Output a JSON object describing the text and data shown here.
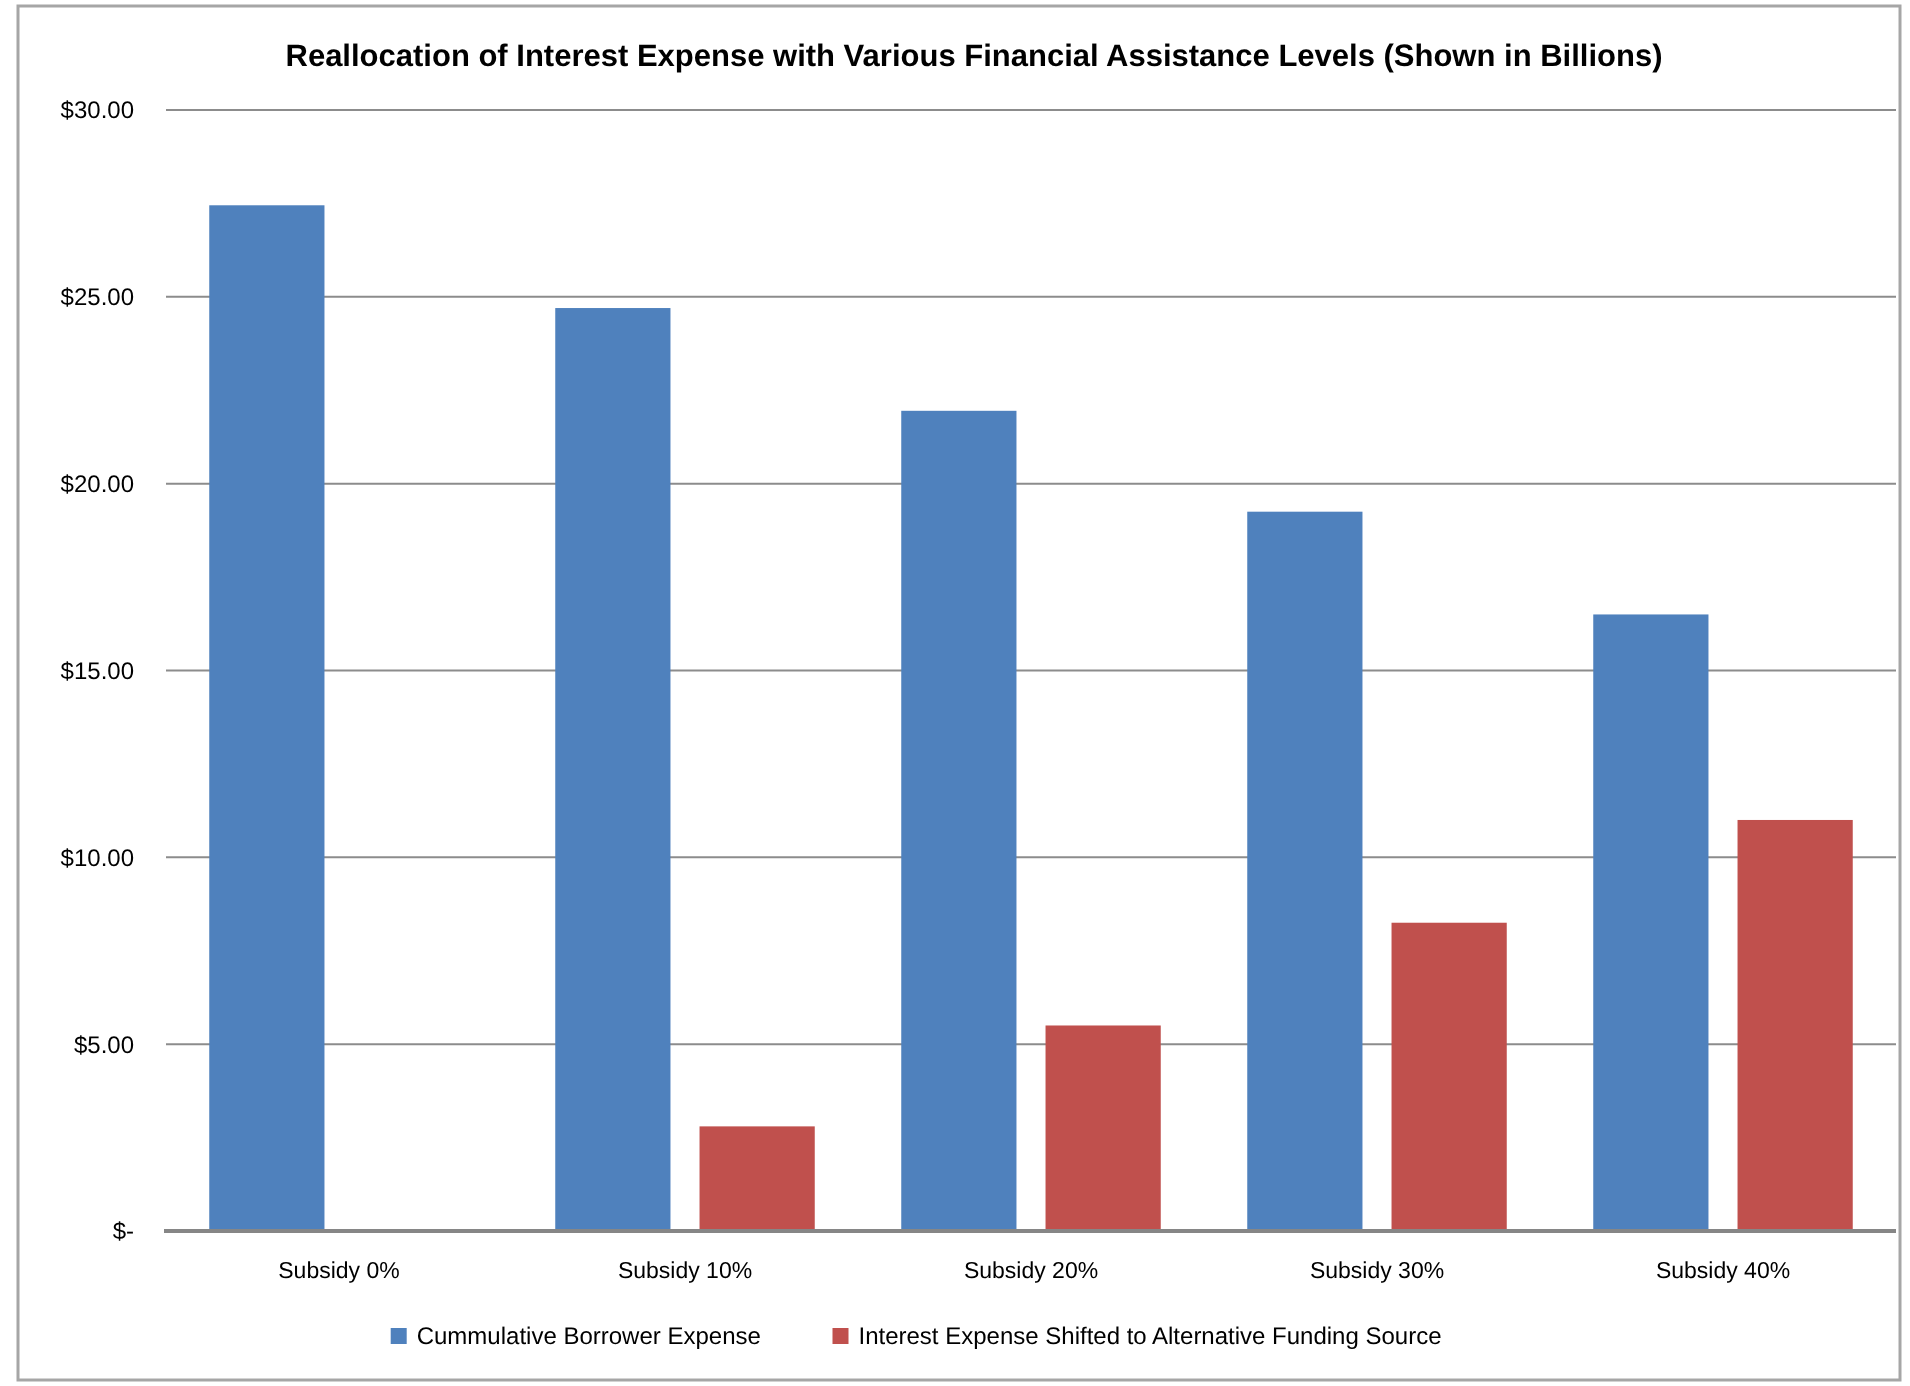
{
  "chart_data": {
    "type": "bar",
    "title": "Reallocation of Interest Expense with Various Financial Assistance Levels (Shown in Billions)",
    "categories": [
      "Subsidy 0%",
      "Subsidy 10%",
      "Subsidy 20%",
      "Subsidy 30%",
      "Subsidy 40%"
    ],
    "series": [
      {
        "name": "Cummulative  Borrower Expense",
        "color": "#4f81bd",
        "values": [
          27.45,
          24.7,
          21.95,
          19.25,
          16.5
        ]
      },
      {
        "name": "Interest Expense Shifted to Alternative Funding Source",
        "color": "#c0504d",
        "values": [
          0,
          2.8,
          5.5,
          8.25,
          11.0
        ]
      }
    ],
    "ylim": [
      0,
      30
    ],
    "yticks": [
      {
        "value": 0,
        "label": "$-"
      },
      {
        "value": 5,
        "label": "$5.00"
      },
      {
        "value": 10,
        "label": "$10.00"
      },
      {
        "value": 15,
        "label": "$15.00"
      },
      {
        "value": 20,
        "label": "$20.00"
      },
      {
        "value": 25,
        "label": "$25.00"
      },
      {
        "value": 30,
        "label": "$30.00"
      }
    ],
    "grid": "y",
    "legend": "bottom"
  }
}
